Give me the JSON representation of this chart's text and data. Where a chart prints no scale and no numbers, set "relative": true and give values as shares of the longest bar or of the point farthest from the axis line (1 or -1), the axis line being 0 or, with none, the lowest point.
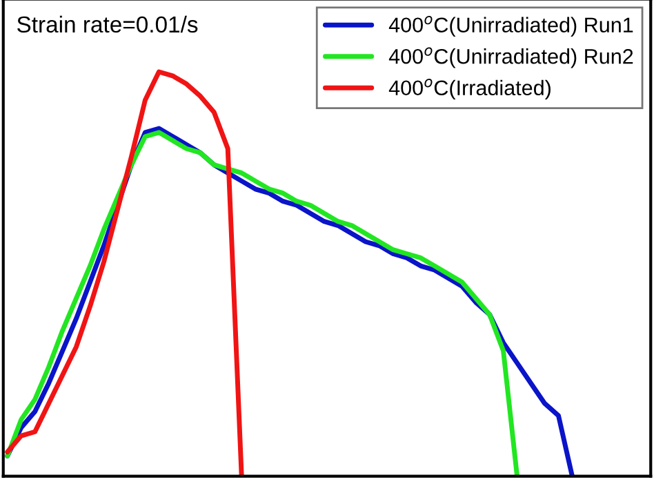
{
  "chart_data": {
    "type": "line",
    "relative": true,
    "legend": "top right",
    "grid": false,
    "categories": [
      null,
      null,
      null,
      null,
      null,
      null,
      null,
      null,
      null,
      null,
      null,
      null,
      null,
      null,
      null,
      null,
      null,
      null,
      null,
      null,
      null,
      null,
      null,
      null,
      null,
      null,
      null,
      null,
      null,
      null,
      null,
      null,
      null,
      null,
      null,
      null,
      null,
      null,
      null,
      null,
      null,
      null,
      null,
      null,
      null,
      null,
      null
    ],
    "annotations": [
      "Strain rate=0.01/s"
    ],
    "series": [
      {
        "name": "400$^{o}$C(Unirradiated) Run1",
        "color": "#0a14c8",
        "values": [
          0.05,
          0.12,
          0.16,
          0.23,
          0.31,
          0.39,
          0.48,
          0.57,
          0.67,
          0.77,
          0.85,
          0.86,
          0.84,
          0.82,
          0.8,
          0.77,
          0.75,
          0.73,
          0.71,
          0.7,
          0.68,
          0.67,
          0.65,
          0.63,
          0.62,
          0.6,
          0.58,
          0.57,
          0.55,
          0.54,
          0.52,
          0.51,
          0.49,
          0.47,
          0.43,
          0.4,
          0.33,
          0.28,
          0.23,
          0.18,
          0.15,
          0,
          null,
          null,
          null,
          null,
          null
        ]
      },
      {
        "name": "400$^{o}$C(Unirradiated) Run2",
        "color": "#22e622",
        "values": [
          0.05,
          0.14,
          0.19,
          0.27,
          0.36,
          0.44,
          0.52,
          0.61,
          0.69,
          0.77,
          0.84,
          0.85,
          0.83,
          0.81,
          0.8,
          0.77,
          0.76,
          0.75,
          0.73,
          0.71,
          0.7,
          0.68,
          0.67,
          0.65,
          0.63,
          0.62,
          0.6,
          0.58,
          0.56,
          0.55,
          0.54,
          0.52,
          0.5,
          0.48,
          0.44,
          0.4,
          0.31,
          0,
          null,
          null,
          null,
          null,
          null,
          null,
          null,
          null,
          null
        ]
      },
      {
        "name": "400$^{o}$C(Irradiated)",
        "color": "#f01414",
        "values": [
          0.06,
          0.1,
          0.11,
          0.18,
          0.25,
          0.32,
          0.42,
          0.53,
          0.66,
          0.79,
          0.93,
          1.0,
          0.99,
          0.97,
          0.94,
          0.9,
          0.81,
          0,
          null,
          null,
          null,
          null,
          null,
          null,
          null,
          null,
          null,
          null,
          null,
          null,
          null,
          null,
          null,
          null,
          null,
          null,
          null,
          null,
          null,
          null,
          null,
          null,
          null,
          null,
          null,
          null,
          null
        ]
      }
    ]
  }
}
